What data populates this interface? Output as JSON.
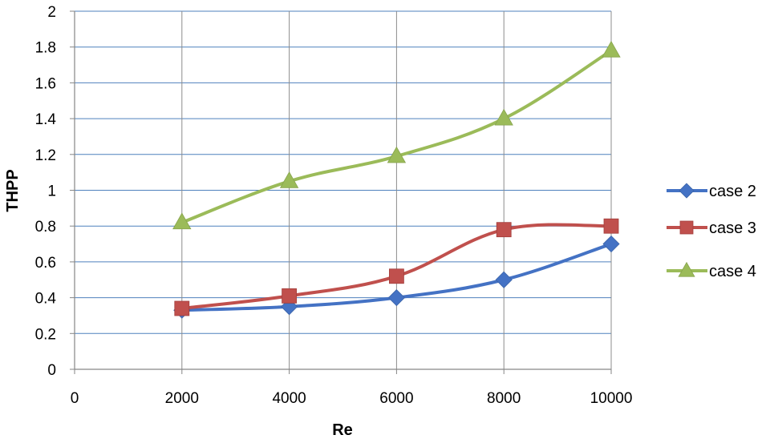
{
  "chart_data": {
    "type": "line",
    "title": "",
    "xlabel": "Re",
    "ylabel": "THPP",
    "xlim": [
      0,
      10000
    ],
    "ylim": [
      0,
      2
    ],
    "x_ticks": [
      "0",
      "2000",
      "4000",
      "6000",
      "8000",
      "10000"
    ],
    "y_ticks": [
      "0",
      "0.2",
      "0.4",
      "0.6",
      "0.8",
      "1",
      "1.2",
      "1.4",
      "1.6",
      "1.8",
      "2"
    ],
    "grid": true,
    "legend_position": "right",
    "smooth": true,
    "x": [
      2000,
      4000,
      6000,
      8000,
      10000
    ],
    "series": [
      {
        "name": "case 2",
        "marker": "diamond",
        "color": "#4472C4",
        "values": [
          0.33,
          0.35,
          0.4,
          0.5,
          0.7
        ]
      },
      {
        "name": "case 3",
        "marker": "square",
        "color": "#C0504D",
        "values": [
          0.34,
          0.41,
          0.52,
          0.78,
          0.8
        ]
      },
      {
        "name": "case 4",
        "marker": "triangle",
        "color": "#9BBB59",
        "values": [
          0.82,
          1.05,
          1.19,
          1.4,
          1.78
        ]
      }
    ]
  }
}
